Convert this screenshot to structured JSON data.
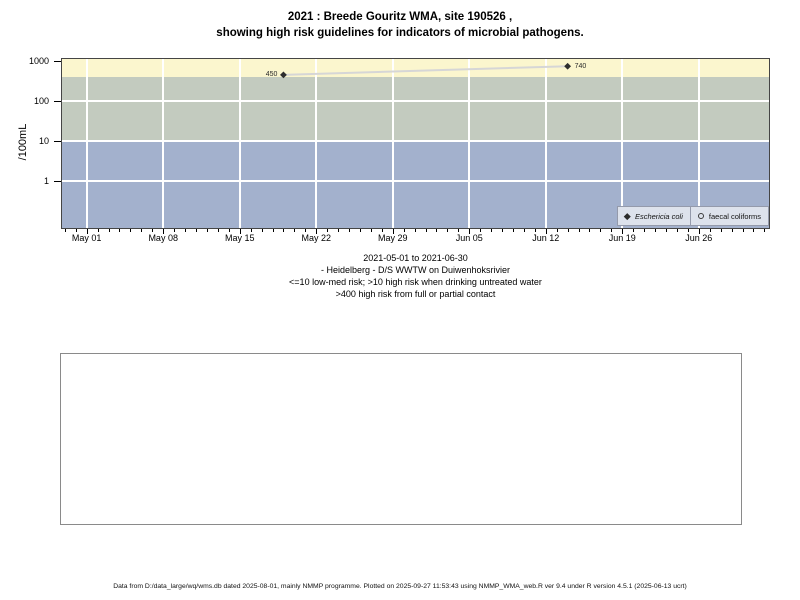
{
  "title": {
    "line1": "2021 : Breede Gouritz WMA, site 190526 ,",
    "line2": "showing high risk guidelines for indicators of microbial pathogens."
  },
  "chart_data": {
    "type": "scatter",
    "title": "2021 : Breede Gouritz WMA, site 190526 , showing high risk guidelines for indicators of microbial pathogens.",
    "xlabel": "",
    "ylabel": "/100mL",
    "y_scale": "log",
    "y_ticks": [
      "1000",
      "100",
      "10",
      "1"
    ],
    "x_ticks": [
      "May 01",
      "May 08",
      "May 15",
      "May 22",
      "May 29",
      "Jun 05",
      "Jun 12",
      "Jun 19",
      "Jun 26"
    ],
    "x_range": [
      "2021-05-01",
      "2021-06-30"
    ],
    "grid": "white major gridlines on",
    "legend_position": "bottom-right inside plot",
    "bands": [
      {
        "name": "high-risk-full-or-partial-contact",
        "min": 400,
        "max": null,
        "color": "#fbf6ce",
        "meaning": ">400 high risk from full or partial contact"
      },
      {
        "name": "high-risk-drinking-untreated-water",
        "min": 10,
        "max": 400,
        "color": "#c3cbbf",
        "meaning": ">10 high risk when drinking untreated water"
      },
      {
        "name": "low-med-risk",
        "min": null,
        "max": 10,
        "color": "#a3b1cd",
        "meaning": "<=10 low-med risk"
      }
    ],
    "series": [
      {
        "name": "Eschericia coli",
        "marker": "filled-diamond",
        "marker_color": "#2e2e2e",
        "line_color": "#d6d6d6",
        "points": [
          {
            "date": "2021-05-19",
            "value": 450,
            "label": "450",
            "label_side": "left"
          },
          {
            "date": "2021-06-14",
            "value": 740,
            "label": "740",
            "label_side": "right"
          }
        ]
      },
      {
        "name": "faecal coliforms",
        "marker": "open-circle",
        "points": []
      }
    ]
  },
  "legend": {
    "items": [
      "Eschericia coli",
      "faecal coliforms"
    ]
  },
  "caption": {
    "line1": "2021-05-01 to 2021-06-30",
    "line2": "- Heidelberg - D/S WWTW on Duiwenhoksrivier",
    "line3": "<=10 low-med risk; >10 high risk when drinking untreated water",
    "line4": ">400 high risk from full or partial contact"
  },
  "footer": {
    "text": "Data from D:/data_large/wq/wms.db dated 2025-08-01, mainly NMMP programme. Plotted on 2025-09-27 11:53:43 using NMMP_WMA_web.R ver 9.4 under R version 4.5.1 (2025-06-13 ucrt)"
  }
}
